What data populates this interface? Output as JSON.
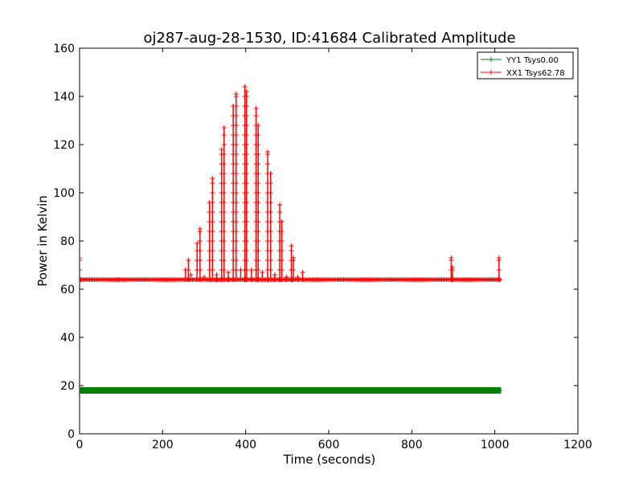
{
  "chart_data": {
    "type": "line",
    "title": "oj287-aug-28-1530, ID:41684 Calibrated Amplitude",
    "xlabel": "Time (seconds)",
    "ylabel": "Power in Kelvin",
    "xlim": [
      0,
      1200
    ],
    "ylim": [
      0,
      160
    ],
    "xticks": [
      0,
      200,
      400,
      600,
      800,
      1000,
      1200
    ],
    "yticks": [
      0,
      20,
      40,
      60,
      80,
      100,
      120,
      140,
      160
    ],
    "grid": false,
    "legend_position": "top-right",
    "marker": "plus",
    "baseline_sampling_note": "",
    "series": [
      {
        "name": "YY1 Tsys0.00",
        "color": "#008000",
        "x_start": 0,
        "x_end": 1015,
        "level": 18.0
      },
      {
        "name": "XX1 Tsys62.78",
        "color": "#ff0000",
        "x_start": 0,
        "x_end": 1015,
        "level": 64.0,
        "points": [
          [
            0,
            73
          ],
          [
            2,
            64
          ],
          [
            1010,
            73
          ],
          [
            1012,
            64
          ],
          [
            255,
            68
          ],
          [
            262,
            72
          ],
          [
            268,
            66
          ],
          [
            283,
            79
          ],
          [
            290,
            85
          ],
          [
            300,
            65
          ],
          [
            313,
            96
          ],
          [
            320,
            106
          ],
          [
            330,
            66
          ],
          [
            342,
            118
          ],
          [
            348,
            127
          ],
          [
            358,
            67
          ],
          [
            370,
            136
          ],
          [
            377,
            141
          ],
          [
            388,
            68
          ],
          [
            398,
            144
          ],
          [
            402,
            142
          ],
          [
            414,
            68
          ],
          [
            425,
            135
          ],
          [
            430,
            128
          ],
          [
            440,
            67
          ],
          [
            453,
            117
          ],
          [
            460,
            108
          ],
          [
            470,
            66
          ],
          [
            482,
            95
          ],
          [
            487,
            88
          ],
          [
            498,
            65
          ],
          [
            510,
            78
          ],
          [
            515,
            73
          ],
          [
            525,
            65
          ],
          [
            537,
            67
          ],
          [
            895,
            73
          ],
          [
            898,
            69
          ]
        ]
      }
    ]
  }
}
